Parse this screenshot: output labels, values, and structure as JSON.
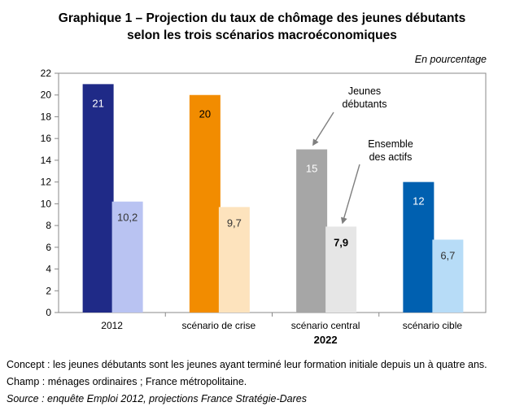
{
  "chart_data": {
    "type": "bar",
    "title_line1": "Graphique 1 – Projection du taux de chômage des jeunes débutants",
    "title_line2": "selon les trois scénarios macroéconomiques",
    "unit": "En pourcentage",
    "categories": [
      "2012",
      "scénario de crise",
      "scénario central",
      "scénario cible"
    ],
    "group_label": "2022",
    "ylim": [
      0,
      22
    ],
    "yticks": [
      0,
      2,
      4,
      6,
      8,
      10,
      12,
      14,
      16,
      18,
      20,
      22
    ],
    "grid": false,
    "series": [
      {
        "name": "Jeunes débutants",
        "values": [
          21,
          20,
          15,
          12
        ],
        "labels": [
          "21",
          "20",
          "15",
          "12"
        ],
        "colors": [
          "#1f2a87",
          "#f28c00",
          "#a6a6a6",
          "#0060b0"
        ],
        "label_colors": [
          "#ffffff",
          "#000000",
          "#ffffff",
          "#ffffff"
        ]
      },
      {
        "name": "Ensemble des actifs",
        "values": [
          10.2,
          9.7,
          7.9,
          6.7
        ],
        "labels": [
          "10,2",
          "9,7",
          "7,9",
          "6,7"
        ],
        "colors": [
          "#b9c3f2",
          "#fde3bd",
          "#e6e6e6",
          "#b7dcf7"
        ],
        "label_colors": [
          "#333333",
          "#333333",
          "#000000",
          "#333333"
        ]
      }
    ],
    "annotations": [
      {
        "text_line1": "Jeunes",
        "text_line2": "débutants",
        "points_to": "Jeunes débutants, scénario central"
      },
      {
        "text_line1": "Ensemble",
        "text_line2": "des actifs",
        "points_to": "Ensemble des actifs, scénario central"
      }
    ]
  },
  "notes": {
    "concept": "Concept : les jeunes débutants sont les jeunes ayant terminé leur formation initiale depuis un à quatre ans.",
    "champ": "Champ : ménages ordinaires ; France métropolitaine.",
    "source": "Source : enquête Emploi 2012, projections France Stratégie-Dares"
  }
}
